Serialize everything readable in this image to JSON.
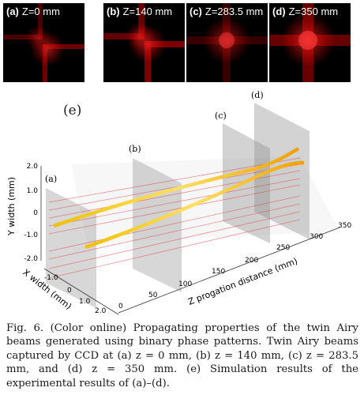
{
  "panels": [
    {
      "letter": "(a)",
      "z_label": "Z=0 mm"
    },
    {
      "letter": "(b)",
      "z_label": "Z=140 mm"
    },
    {
      "letter": "(c)",
      "z_label": "Z=283.5 mm"
    },
    {
      "letter": "(d)",
      "z_label": "Z=350 mm"
    }
  ],
  "simulation": {
    "panel_label": "(e)",
    "plane_labels": [
      "(a)",
      "(b)",
      "(c)",
      "(d)"
    ],
    "y_axis_label": "Y width (mm)",
    "x_axis_label": "X width (mm)",
    "z_axis_label": "Z progation distance (mm)",
    "y_ticks": [
      "2.0",
      "1.0",
      "0",
      "-1.0",
      "-2.0"
    ],
    "x_ticks": [
      "-1.0",
      "0",
      "1.0",
      "2.0"
    ],
    "z_ticks": [
      "0",
      "50",
      "100",
      "150",
      "200",
      "250",
      "300",
      "350"
    ]
  },
  "caption": "Fig. 6.   (Color online) Propagating properties of the twin Airy beams generated using binary phase patterns. Twin Airy beams captured by CCD at (a) z = 0 mm, (b) z = 140 mm, (c) z = 283.5 mm, and (d) z = 350 mm. (e) Simulation results of the experimental results of (a)–(d)."
}
